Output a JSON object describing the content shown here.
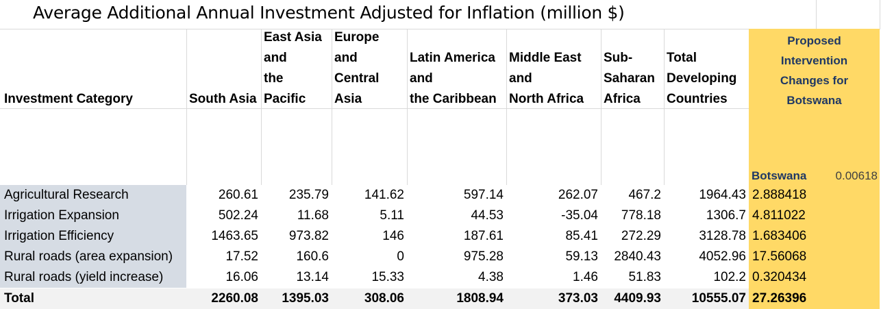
{
  "title": "Average Additional Annual Investment Adjusted for Inflation (million $)",
  "headers": {
    "category": "Investment Category",
    "south_asia": "South Asia",
    "east_asia": [
      "East Asia",
      "and",
      "the",
      "Pacific"
    ],
    "europe": [
      "Europe",
      "and",
      "Central",
      "Asia"
    ],
    "latam": [
      "Latin America",
      "and",
      "the Caribbean"
    ],
    "mena": [
      "Middle East",
      "and",
      "North Africa"
    ],
    "ssa": [
      "Sub-",
      "Saharan",
      "Africa"
    ],
    "total_dev": [
      "Total",
      "Developing",
      "Countries"
    ],
    "proposed": [
      "Proposed",
      "Intervention",
      "Changes for",
      "Botswana"
    ]
  },
  "botswana_label": "Botswana",
  "botswana_factor": "0.00618",
  "rows": [
    {
      "label": "Agricultural Research",
      "values": [
        "260.61",
        "235.79",
        "141.62",
        "597.14",
        "262.07",
        "467.2",
        "1964.43"
      ],
      "botswana": "2.888418"
    },
    {
      "label": "Irrigation Expansion",
      "values": [
        "502.24",
        "11.68",
        "5.11",
        "44.53",
        "-35.04",
        "778.18",
        "1306.7"
      ],
      "botswana": "4.811022"
    },
    {
      "label": "Irrigation Efficiency",
      "values": [
        "1463.65",
        "973.82",
        "146",
        "187.61",
        "85.41",
        "272.29",
        "3128.78"
      ],
      "botswana": "1.683406"
    },
    {
      "label": "Rural roads (area expansion)",
      "values": [
        "17.52",
        "160.6",
        "0",
        "975.28",
        "59.13",
        "2840.43",
        "4052.96"
      ],
      "botswana": "17.56068"
    },
    {
      "label": "Rural roads (yield increase)",
      "values": [
        "16.06",
        "13.14",
        "15.33",
        "4.38",
        "1.46",
        "51.83",
        "102.2"
      ],
      "botswana": "0.320434"
    }
  ],
  "total": {
    "label": "Total",
    "values": [
      "2260.08",
      "1395.03",
      "308.06",
      "1808.94",
      "373.03",
      "4409.93",
      "10555.07"
    ],
    "botswana": "27.26396"
  }
}
